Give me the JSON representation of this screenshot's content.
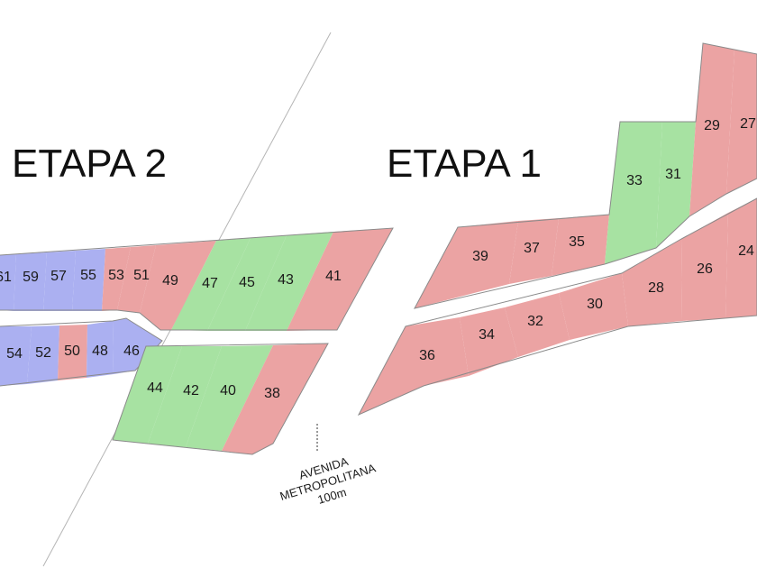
{
  "titles": {
    "stage2": "ETAPA 2",
    "stage1": "ETAPA 1"
  },
  "avenue": {
    "line1": "AVENIDA",
    "line2": "METROPOLITANA",
    "line3": "100m"
  },
  "colors": {
    "red_lot": "#eba3a3",
    "green_lot": "#a7e2a2",
    "blue_lot": "#abb0f1",
    "lot_outline": "#8a8a8a"
  },
  "lots": {
    "l61": "61",
    "l59": "59",
    "l57": "57",
    "l55": "55",
    "l53": "53",
    "l51": "51",
    "l49": "49",
    "l47": "47",
    "l45": "45",
    "l43": "43",
    "l41": "41",
    "l54": "54",
    "l52": "52",
    "l50": "50",
    "l48": "48",
    "l46": "46",
    "l44": "44",
    "l42": "42",
    "l40": "40",
    "l38": "38",
    "l39": "39",
    "l37": "37",
    "l35": "35",
    "l33": "33",
    "l31": "31",
    "l29": "29",
    "l27": "27",
    "l36": "36",
    "l34": "34",
    "l32": "32",
    "l30": "30",
    "l28": "28",
    "l26": "26",
    "l24": "24"
  }
}
